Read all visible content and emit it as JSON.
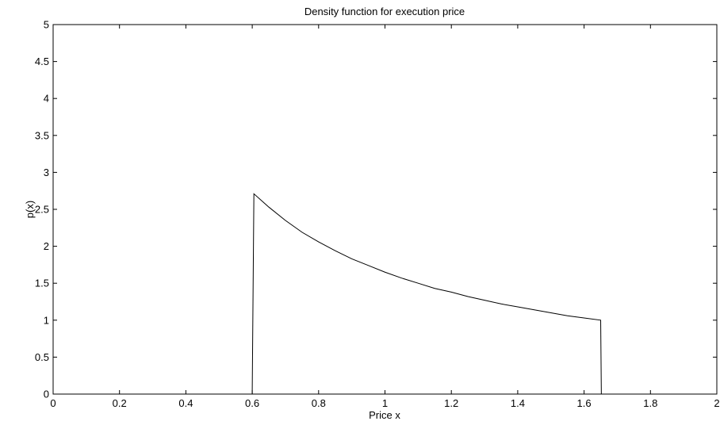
{
  "chart_data": {
    "type": "line",
    "title": "Density function for execution price",
    "xlabel": "Price x",
    "ylabel": "p(x)",
    "xlim": [
      0,
      2
    ],
    "ylim": [
      0,
      5
    ],
    "xticks": [
      0,
      0.2,
      0.4,
      0.6,
      0.8,
      1,
      1.2,
      1.4,
      1.6,
      1.8,
      2
    ],
    "xtick_labels": [
      "0",
      "0.2",
      "0.4",
      "0.6",
      "0.8",
      "1",
      "1.2",
      "1.4",
      "1.6",
      "1.8",
      "2"
    ],
    "yticks": [
      0,
      0.5,
      1,
      1.5,
      2,
      2.5,
      3,
      3.5,
      4,
      4.5,
      5
    ],
    "ytick_labels": [
      "0",
      "0.5",
      "1",
      "1.5",
      "2",
      "2.5",
      "3",
      "3.5",
      "4",
      "4.5",
      "5"
    ],
    "grid": false,
    "legend": "none",
    "line_color": "#000000",
    "series": [
      {
        "x": [
          0,
          0.6,
          0.6,
          0.605,
          0.65,
          0.7,
          0.75,
          0.8,
          0.85,
          0.9,
          0.95,
          1.0,
          1.05,
          1.1,
          1.15,
          1.2,
          1.25,
          1.3,
          1.35,
          1.4,
          1.45,
          1.5,
          1.55,
          1.6,
          1.65,
          1.652,
          2
        ],
        "y": [
          0,
          0,
          0.05,
          2.71,
          2.53,
          2.35,
          2.19,
          2.06,
          1.94,
          1.83,
          1.74,
          1.65,
          1.57,
          1.5,
          1.43,
          1.38,
          1.32,
          1.27,
          1.22,
          1.18,
          1.14,
          1.1,
          1.06,
          1.03,
          1.0,
          0,
          0
        ]
      }
    ]
  }
}
